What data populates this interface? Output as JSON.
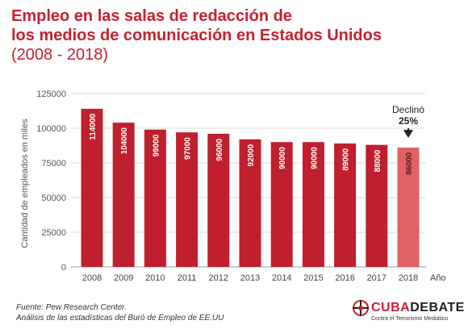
{
  "title": {
    "line1": "Empleo en las salas de redacción de",
    "line2": "los medios de comunicación en Estados Unidos",
    "subtitle": "(2008 - 2018)"
  },
  "chart_data": {
    "type": "bar",
    "categories": [
      "2008",
      "2009",
      "2010",
      "2011",
      "2012",
      "2013",
      "2014",
      "2015",
      "2016",
      "2017",
      "2018"
    ],
    "values": [
      114000,
      104000,
      99000,
      97000,
      96000,
      92000,
      90000,
      90000,
      89000,
      88000,
      86000
    ],
    "ylabel": "Cantidad de empleados en miles",
    "xlabel": "Año",
    "ylim": [
      0,
      125000
    ],
    "yticks": [
      "0",
      "25000",
      "50000",
      "75000",
      "100000",
      "125000"
    ],
    "annotation": {
      "text": "Declinó",
      "value": "25%",
      "target": "2018"
    },
    "grid": true,
    "colors": {
      "bar": "#c01f2e",
      "highlight": "#e06262",
      "highlight_label": "#5a1a1a"
    }
  },
  "source": {
    "line1": "Fuente: Pew Research Center.",
    "line2": "Análisis de las estadísticas del Buró de Empleo de EE.UU"
  },
  "logo": {
    "word_red": "CUBA",
    "word_dark": "DEBATE",
    "tagline": "Contra el Terrorismo Mediático",
    "icon": "cubadebate-logo-icon"
  }
}
